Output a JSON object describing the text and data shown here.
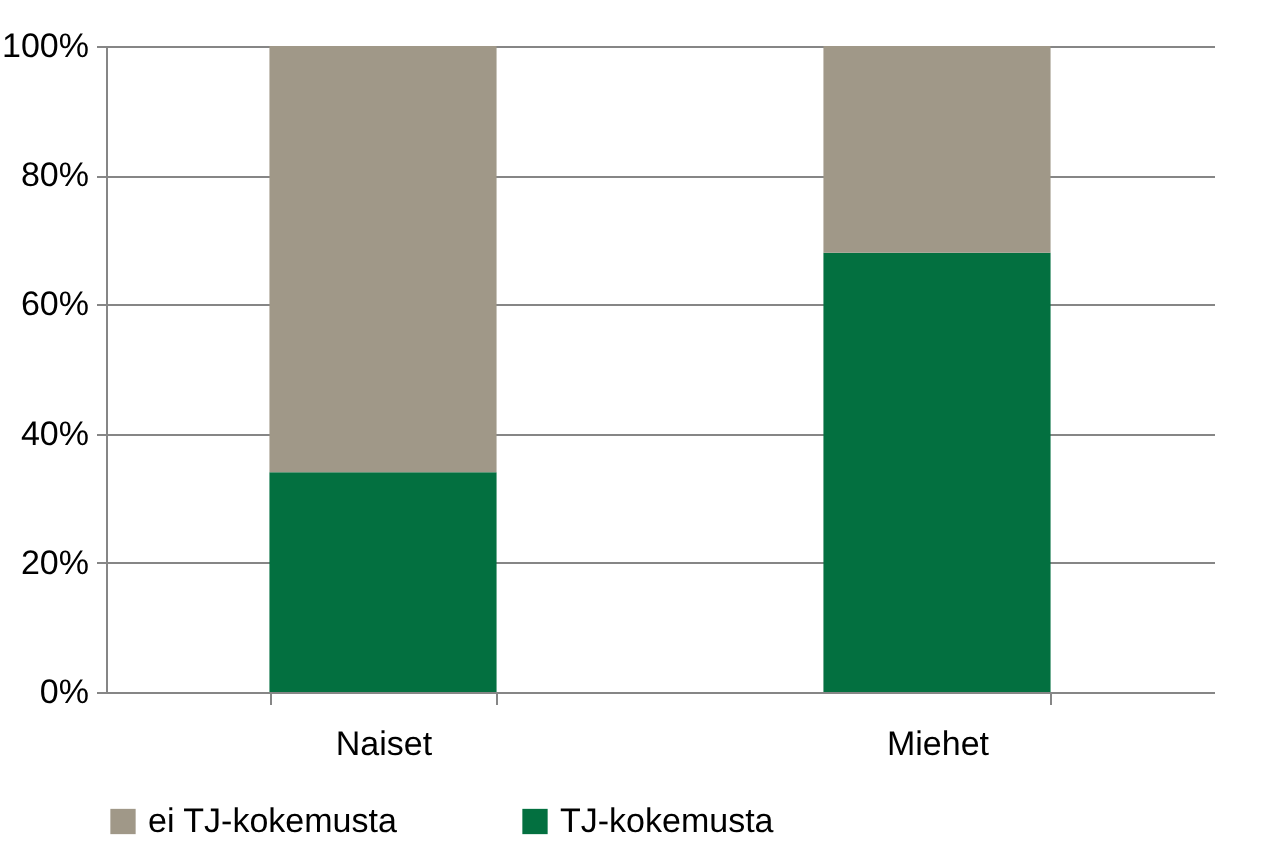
{
  "chart_data": {
    "type": "bar",
    "stacked": true,
    "categories": [
      "Naiset",
      "Miehet"
    ],
    "series": [
      {
        "name": "TJ-kokemusta",
        "color": "#037040",
        "values": [
          34,
          68
        ]
      },
      {
        "name": "ei TJ-kokemusta",
        "color": "#a09888",
        "values": [
          66,
          32
        ]
      }
    ],
    "ylim": [
      0,
      100
    ],
    "yticks": [
      {
        "value": 0,
        "label": "0%"
      },
      {
        "value": 20,
        "label": "20%"
      },
      {
        "value": 40,
        "label": "40%"
      },
      {
        "value": 60,
        "label": "60%"
      },
      {
        "value": 80,
        "label": "80%"
      },
      {
        "value": 100,
        "label": "100%"
      }
    ],
    "grid": "y",
    "legend": "bottom"
  }
}
